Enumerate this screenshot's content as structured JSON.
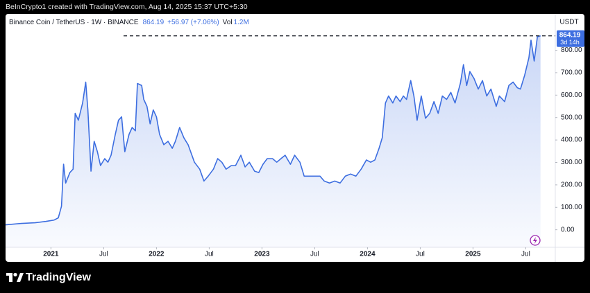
{
  "header": {
    "credit": "BeInCrypto1 created with TradingView.com, Aug 14, 2025 15:37 UTC+5:30"
  },
  "chart_data": {
    "type": "line",
    "symbol": "Binance Coin / TetherUS · 1W · BINANCE",
    "last_price": 864.19,
    "change": "+56.97 (+7.06%)",
    "volume_label": "Vol",
    "volume": "1.2M",
    "currency": "USDT",
    "countdown": "3d 14h",
    "color": "#3d6ee0",
    "x": [
      2020.57,
      2020.72,
      2020.85,
      2020.95,
      2021.03,
      2021.07,
      2021.1,
      2021.12,
      2021.14,
      2021.18,
      2021.21,
      2021.23,
      2021.26,
      2021.3,
      2021.33,
      2021.35,
      2021.38,
      2021.41,
      2021.44,
      2021.47,
      2021.51,
      2021.54,
      2021.57,
      2021.61,
      2021.64,
      2021.67,
      2021.7,
      2021.74,
      2021.77,
      2021.8,
      2021.82,
      2021.86,
      2021.88,
      2021.91,
      2021.94,
      2021.97,
      2022.0,
      2022.03,
      2022.07,
      2022.11,
      2022.15,
      2022.18,
      2022.22,
      2022.26,
      2022.3,
      2022.36,
      2022.41,
      2022.45,
      2022.49,
      2022.54,
      2022.58,
      2022.62,
      2022.66,
      2022.71,
      2022.75,
      2022.8,
      2022.84,
      2022.88,
      2022.93,
      2022.97,
      2023.01,
      2023.05,
      2023.1,
      2023.14,
      2023.18,
      2023.22,
      2023.27,
      2023.31,
      2023.36,
      2023.4,
      2023.45,
      2023.49,
      2023.55,
      2023.59,
      2023.64,
      2023.69,
      2023.74,
      2023.79,
      2023.84,
      2023.89,
      2023.94,
      2023.99,
      2024.03,
      2024.07,
      2024.11,
      2024.14,
      2024.17,
      2024.2,
      2024.24,
      2024.27,
      2024.31,
      2024.34,
      2024.37,
      2024.41,
      2024.44,
      2024.47,
      2024.51,
      2024.55,
      2024.59,
      2024.63,
      2024.67,
      2024.71,
      2024.75,
      2024.79,
      2024.83,
      2024.88,
      2024.91,
      2024.94,
      2024.97,
      2025.01,
      2025.05,
      2025.09,
      2025.13,
      2025.17,
      2025.22,
      2025.25,
      2025.3,
      2025.34,
      2025.38,
      2025.42,
      2025.45,
      2025.49,
      2025.53,
      2025.55,
      2025.58,
      2025.61,
      2025.64
    ],
    "values": [
      22,
      28,
      31,
      37,
      43,
      53,
      105,
      292,
      208,
      255,
      270,
      519,
      488,
      565,
      658,
      534,
      261,
      394,
      348,
      286,
      317,
      301,
      332,
      425,
      488,
      503,
      348,
      425,
      456,
      441,
      652,
      643,
      581,
      550,
      472,
      534,
      503,
      425,
      379,
      394,
      363,
      394,
      456,
      410,
      379,
      301,
      270,
      217,
      239,
      270,
      317,
      301,
      270,
      286,
      286,
      332,
      280,
      301,
      261,
      255,
      292,
      317,
      317,
      301,
      317,
      332,
      292,
      332,
      301,
      239,
      239,
      239,
      239,
      217,
      208,
      217,
      208,
      239,
      248,
      239,
      270,
      311,
      301,
      311,
      363,
      410,
      565,
      596,
      565,
      596,
      571,
      596,
      581,
      665,
      596,
      488,
      596,
      497,
      519,
      571,
      519,
      596,
      581,
      612,
      565,
      652,
      736,
      643,
      705,
      674,
      627,
      665,
      596,
      627,
      550,
      596,
      571,
      643,
      658,
      633,
      627,
      689,
      767,
      845,
      752,
      860,
      864.19
    ],
    "xlim": [
      2020.57,
      2025.78
    ],
    "xticks": [
      {
        "value": 2021,
        "label": "2021"
      },
      {
        "value": 2021.5,
        "label": "Jul"
      },
      {
        "value": 2022,
        "label": "2022"
      },
      {
        "value": 2022.5,
        "label": "Jul"
      },
      {
        "value": 2023,
        "label": "2023"
      },
      {
        "value": 2023.5,
        "label": "Jul"
      },
      {
        "value": 2024,
        "label": "2024"
      },
      {
        "value": 2024.5,
        "label": "Jul"
      },
      {
        "value": 2025,
        "label": "2025"
      },
      {
        "value": 2025.5,
        "label": "Jul"
      }
    ],
    "ylim": [
      -143,
      885
    ],
    "yticks": [
      {
        "value": 0,
        "label": "0.00"
      },
      {
        "value": 100,
        "label": "100.00"
      },
      {
        "value": 200,
        "label": "200.00"
      },
      {
        "value": 300,
        "label": "300.00"
      },
      {
        "value": 400,
        "label": "400.00"
      },
      {
        "value": 500,
        "label": "500.00"
      },
      {
        "value": 600,
        "label": "600.00"
      },
      {
        "value": 700,
        "label": "700.00"
      },
      {
        "value": 800,
        "label": "800.00"
      }
    ]
  },
  "footer": {
    "brand": "TradingView"
  }
}
